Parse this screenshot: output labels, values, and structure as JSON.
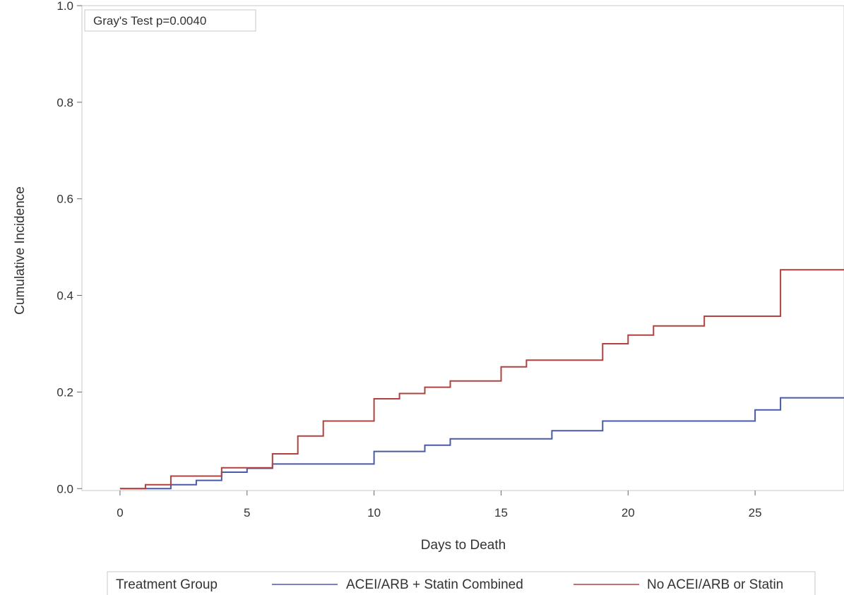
{
  "chart_data": {
    "type": "line",
    "step": true,
    "xlabel": "Days to Death",
    "ylabel": "Cumulative Incidence",
    "xlim": [
      -1.5,
      28.5
    ],
    "ylim": [
      -0.004,
      1.0
    ],
    "xticks": [
      0,
      5,
      10,
      15,
      20,
      25
    ],
    "xtick_labels": [
      "0",
      "5",
      "10",
      "15",
      "20",
      "25"
    ],
    "yticks": [
      0.0,
      0.2,
      0.4,
      0.6,
      0.8,
      1.0
    ],
    "ytick_labels": [
      "0.0",
      "0.2",
      "0.4",
      "0.6",
      "0.8",
      "1.0"
    ],
    "grid": false,
    "annotation": "Gray's Test p=0.0040",
    "legend": {
      "title": "Treatment Group",
      "position": "bottom"
    },
    "series": [
      {
        "name": "ACEI/ARB + Statin Combined",
        "color": "#4a5aa8",
        "x": [
          0,
          1,
          2,
          3,
          4,
          5,
          6,
          10,
          12,
          13,
          17,
          19,
          25,
          26,
          28.5
        ],
        "y": [
          0.0,
          0.0,
          0.008,
          0.017,
          0.034,
          0.042,
          0.051,
          0.077,
          0.09,
          0.103,
          0.12,
          0.14,
          0.163,
          0.188,
          0.188
        ]
      },
      {
        "name": "No ACEI/ARB or Statin",
        "color": "#b0413e",
        "x": [
          0,
          1,
          2,
          4,
          6,
          7,
          8,
          10,
          11,
          12,
          13,
          15,
          16,
          19,
          20,
          21,
          23,
          26,
          28.5
        ],
        "y": [
          0.0,
          0.008,
          0.026,
          0.043,
          0.072,
          0.109,
          0.14,
          0.186,
          0.197,
          0.21,
          0.223,
          0.252,
          0.266,
          0.3,
          0.318,
          0.337,
          0.357,
          0.453,
          0.453
        ]
      }
    ]
  }
}
